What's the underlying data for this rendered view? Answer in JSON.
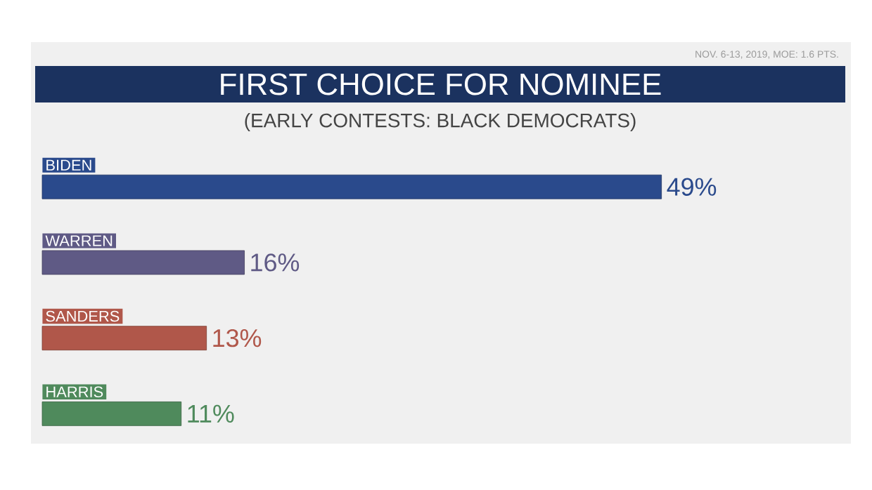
{
  "chart_data": {
    "type": "bar",
    "orientation": "horizontal",
    "title": "FIRST CHOICE FOR NOMINEE",
    "subtitle": "(EARLY CONTESTS: BLACK DEMOCRATS)",
    "annotations": [
      "NOV. 6-13, 2019, MOE: 1.6 PTS."
    ],
    "categories": [
      "BIDEN",
      "WARREN",
      "SANDERS",
      "HARRIS"
    ],
    "values": [
      49,
      16,
      13,
      11
    ],
    "value_labels": [
      "49%",
      "16%",
      "13%",
      "11%"
    ],
    "colors": [
      "#2a4a8c",
      "#5f5a85",
      "#b0574a",
      "#4f8a5c"
    ]
  }
}
